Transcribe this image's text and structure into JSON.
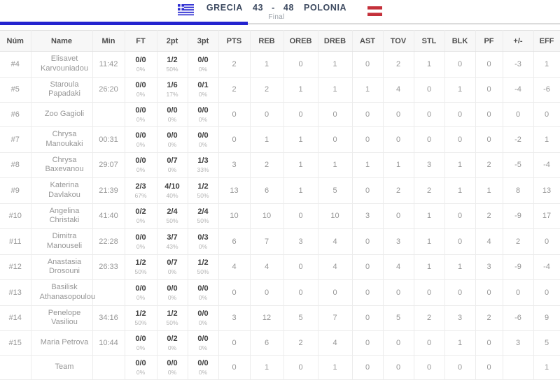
{
  "header": {
    "home_team": "GRECIA",
    "home_score": "43",
    "separator": "-",
    "away_score": "48",
    "away_team": "POLONIA",
    "status": "Final",
    "accent_blue": "#2424cf",
    "flag_blue": "#2b2bd2",
    "flag_red": "#c4303a"
  },
  "table": {
    "columns": [
      "Núm",
      "Name",
      "Min",
      "FT",
      "2pt",
      "3pt",
      "PTS",
      "REB",
      "OREB",
      "DREB",
      "AST",
      "TOV",
      "STL",
      "BLK",
      "PF",
      "+/-",
      "EFF"
    ],
    "rows": [
      {
        "num": "#4",
        "name": "Elisavet Karvouniadou",
        "min": "11:42",
        "ft": "0/0",
        "ft_pct": "0%",
        "p2": "1/2",
        "p2_pct": "50%",
        "p3": "0/0",
        "p3_pct": "0%",
        "pts": "2",
        "reb": "1",
        "oreb": "0",
        "dreb": "1",
        "ast": "0",
        "tov": "2",
        "stl": "1",
        "blk": "0",
        "pf": "0",
        "pm": "-3",
        "eff": "1"
      },
      {
        "num": "#5",
        "name": "Staroula Papadaki",
        "min": "26:20",
        "ft": "0/0",
        "ft_pct": "0%",
        "p2": "1/6",
        "p2_pct": "17%",
        "p3": "0/1",
        "p3_pct": "0%",
        "pts": "2",
        "reb": "2",
        "oreb": "1",
        "dreb": "1",
        "ast": "1",
        "tov": "4",
        "stl": "0",
        "blk": "1",
        "pf": "0",
        "pm": "-4",
        "eff": "-6"
      },
      {
        "num": "#6",
        "name": "Zoo Gagioli",
        "min": "",
        "ft": "0/0",
        "ft_pct": "0%",
        "p2": "0/0",
        "p2_pct": "0%",
        "p3": "0/0",
        "p3_pct": "0%",
        "pts": "0",
        "reb": "0",
        "oreb": "0",
        "dreb": "0",
        "ast": "0",
        "tov": "0",
        "stl": "0",
        "blk": "0",
        "pf": "0",
        "pm": "0",
        "eff": "0"
      },
      {
        "num": "#7",
        "name": "Chrysa Manoukaki",
        "min": "00:31",
        "ft": "0/0",
        "ft_pct": "0%",
        "p2": "0/0",
        "p2_pct": "0%",
        "p3": "0/0",
        "p3_pct": "0%",
        "pts": "0",
        "reb": "1",
        "oreb": "1",
        "dreb": "0",
        "ast": "0",
        "tov": "0",
        "stl": "0",
        "blk": "0",
        "pf": "0",
        "pm": "-2",
        "eff": "1"
      },
      {
        "num": "#8",
        "name": "Chrysa Baxevanou",
        "min": "29:07",
        "ft": "0/0",
        "ft_pct": "0%",
        "p2": "0/7",
        "p2_pct": "0%",
        "p3": "1/3",
        "p3_pct": "33%",
        "pts": "3",
        "reb": "2",
        "oreb": "1",
        "dreb": "1",
        "ast": "1",
        "tov": "1",
        "stl": "3",
        "blk": "1",
        "pf": "2",
        "pm": "-5",
        "eff": "-4"
      },
      {
        "num": "#9",
        "name": "Katerina Davlakou",
        "min": "21:39",
        "ft": "2/3",
        "ft_pct": "67%",
        "p2": "4/10",
        "p2_pct": "40%",
        "p3": "1/2",
        "p3_pct": "50%",
        "pts": "13",
        "reb": "6",
        "oreb": "1",
        "dreb": "5",
        "ast": "0",
        "tov": "2",
        "stl": "2",
        "blk": "1",
        "pf": "1",
        "pm": "8",
        "eff": "13"
      },
      {
        "num": "#10",
        "name": "Angelina Christaki",
        "min": "41:40",
        "ft": "0/2",
        "ft_pct": "0%",
        "p2": "2/4",
        "p2_pct": "50%",
        "p3": "2/4",
        "p3_pct": "50%",
        "pts": "10",
        "reb": "10",
        "oreb": "0",
        "dreb": "10",
        "ast": "3",
        "tov": "0",
        "stl": "1",
        "blk": "0",
        "pf": "2",
        "pm": "-9",
        "eff": "17"
      },
      {
        "num": "#11",
        "name": "Dimitra Manouseli",
        "min": "22:28",
        "ft": "0/0",
        "ft_pct": "0%",
        "p2": "3/7",
        "p2_pct": "43%",
        "p3": "0/3",
        "p3_pct": "0%",
        "pts": "6",
        "reb": "7",
        "oreb": "3",
        "dreb": "4",
        "ast": "0",
        "tov": "3",
        "stl": "1",
        "blk": "0",
        "pf": "4",
        "pm": "2",
        "eff": "0"
      },
      {
        "num": "#12",
        "name": "Anastasia Drosouni",
        "min": "26:33",
        "ft": "1/2",
        "ft_pct": "50%",
        "p2": "0/7",
        "p2_pct": "0%",
        "p3": "1/2",
        "p3_pct": "50%",
        "pts": "4",
        "reb": "4",
        "oreb": "0",
        "dreb": "4",
        "ast": "0",
        "tov": "4",
        "stl": "1",
        "blk": "1",
        "pf": "3",
        "pm": "-9",
        "eff": "-4"
      },
      {
        "num": "#13",
        "name": "Basilisk Athanasopoulou",
        "min": "",
        "ft": "0/0",
        "ft_pct": "0%",
        "p2": "0/0",
        "p2_pct": "0%",
        "p3": "0/0",
        "p3_pct": "0%",
        "pts": "0",
        "reb": "0",
        "oreb": "0",
        "dreb": "0",
        "ast": "0",
        "tov": "0",
        "stl": "0",
        "blk": "0",
        "pf": "0",
        "pm": "0",
        "eff": "0"
      },
      {
        "num": "#14",
        "name": "Penelope Vasiliou",
        "min": "34:16",
        "ft": "1/2",
        "ft_pct": "50%",
        "p2": "1/2",
        "p2_pct": "50%",
        "p3": "0/0",
        "p3_pct": "0%",
        "pts": "3",
        "reb": "12",
        "oreb": "5",
        "dreb": "7",
        "ast": "0",
        "tov": "5",
        "stl": "2",
        "blk": "3",
        "pf": "2",
        "pm": "-6",
        "eff": "9"
      },
      {
        "num": "#15",
        "name": "Maria Petrova",
        "min": "10:44",
        "ft": "0/0",
        "ft_pct": "0%",
        "p2": "0/2",
        "p2_pct": "0%",
        "p3": "0/0",
        "p3_pct": "0%",
        "pts": "0",
        "reb": "6",
        "oreb": "2",
        "dreb": "4",
        "ast": "0",
        "tov": "0",
        "stl": "0",
        "blk": "1",
        "pf": "0",
        "pm": "3",
        "eff": "5"
      },
      {
        "num": "",
        "name": "Team",
        "min": "",
        "ft": "0/0",
        "ft_pct": "0%",
        "p2": "0/0",
        "p2_pct": "0%",
        "p3": "0/0",
        "p3_pct": "0%",
        "pts": "0",
        "reb": "1",
        "oreb": "0",
        "dreb": "1",
        "ast": "0",
        "tov": "0",
        "stl": "0",
        "blk": "0",
        "pf": "0",
        "pm": "",
        "eff": "1"
      }
    ]
  }
}
